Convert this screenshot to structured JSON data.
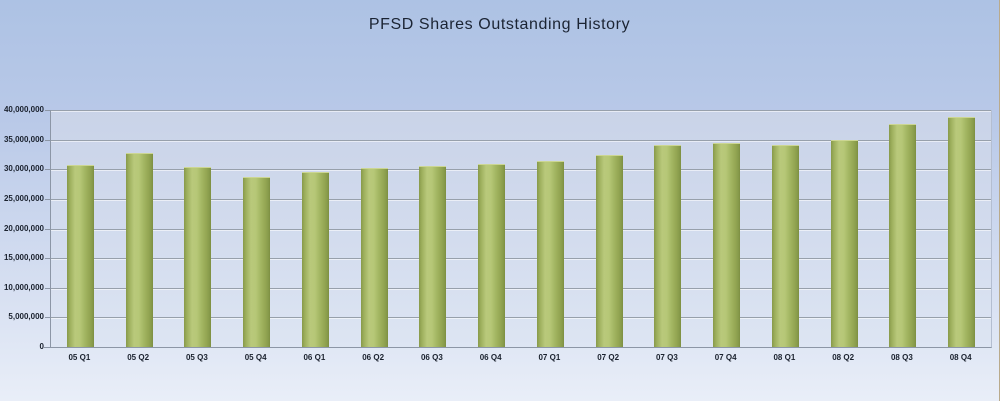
{
  "chart_data": {
    "type": "bar",
    "title": "PFSD Shares Outstanding History",
    "categories": [
      "05 Q1",
      "05 Q2",
      "05 Q3",
      "05 Q4",
      "06 Q1",
      "06 Q2",
      "06 Q3",
      "06 Q4",
      "07 Q1",
      "07 Q2",
      "07 Q3",
      "07 Q4",
      "08 Q1",
      "08 Q2",
      "08 Q3",
      "08 Q4"
    ],
    "values": [
      30500000,
      32600000,
      30200000,
      28600000,
      29400000,
      30000000,
      30300000,
      30700000,
      31200000,
      32200000,
      33900000,
      34200000,
      33900000,
      34700000,
      37400000,
      38600000
    ],
    "xlabel": "",
    "ylabel": "",
    "ylim": [
      0,
      40000000
    ],
    "ytick_step": 5000000,
    "ytick_labels": [
      "0",
      "5,000,000",
      "10,000,000",
      "15,000,000",
      "20,000,000",
      "25,000,000",
      "30,000,000",
      "35,000,000",
      "40,000,000"
    ],
    "grid": true,
    "legend_position": "none",
    "colors": {
      "bar": "#a9bc66",
      "background_top": "#adc2e4",
      "background_bottom": "#e9eef8",
      "plot_background": "#d0d9eb",
      "gridline": "#97a0ab",
      "text": "#1b2433",
      "frame_edge": "#b9aa8c"
    }
  }
}
